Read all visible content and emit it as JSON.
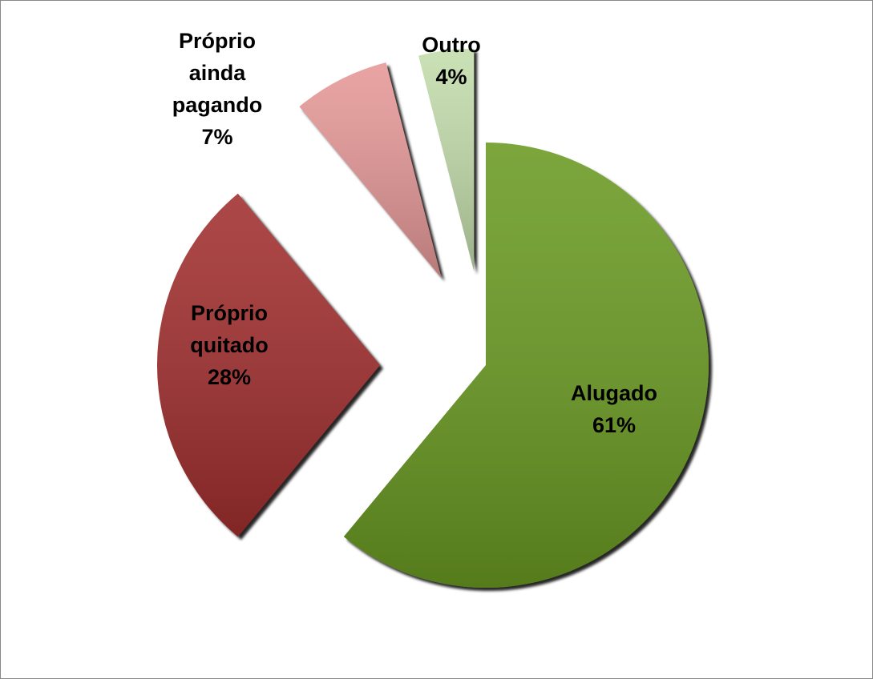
{
  "chart_data": {
    "type": "pie",
    "categories": [
      "Alugado",
      "Próprio quitado",
      "Próprio ainda pagando",
      "Outro"
    ],
    "values": [
      61,
      28,
      7,
      4
    ],
    "value_labels": [
      "61%",
      "28%",
      "7%",
      "4%"
    ],
    "colors": [
      "#6a9a22",
      "#a12e2f",
      "#e59897",
      "#c3dcab"
    ]
  }
}
